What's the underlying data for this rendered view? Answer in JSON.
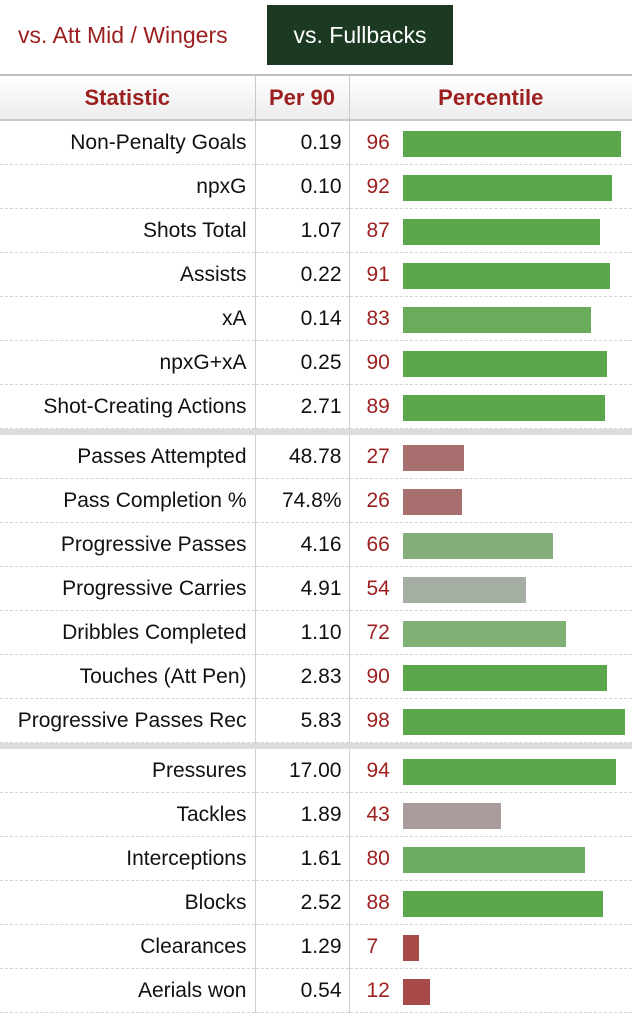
{
  "tabs": [
    {
      "label": "vs. Att Mid / Wingers",
      "active": false
    },
    {
      "label": "vs. Fullbacks",
      "active": true
    }
  ],
  "table": {
    "headers": {
      "statistic": "Statistic",
      "per90": "Per 90",
      "percentile": "Percentile"
    },
    "groups": [
      [
        {
          "statistic": "Non-Penalty Goals",
          "per90": "0.19",
          "percentile": 96,
          "color": "#5aa64a"
        },
        {
          "statistic": "npxG",
          "per90": "0.10",
          "percentile": 92,
          "color": "#5aa64a"
        },
        {
          "statistic": "Shots Total",
          "per90": "1.07",
          "percentile": 87,
          "color": "#5aa64a"
        },
        {
          "statistic": "Assists",
          "per90": "0.22",
          "percentile": 91,
          "color": "#5aa64a"
        },
        {
          "statistic": "xA",
          "per90": "0.14",
          "percentile": 83,
          "color": "#6aac5c"
        },
        {
          "statistic": "npxG+xA",
          "per90": "0.25",
          "percentile": 90,
          "color": "#5aa64a"
        },
        {
          "statistic": "Shot-Creating Actions",
          "per90": "2.71",
          "percentile": 89,
          "color": "#5aa64a"
        }
      ],
      [
        {
          "statistic": "Passes Attempted",
          "per90": "48.78",
          "percentile": 27,
          "color": "#a86f6f"
        },
        {
          "statistic": "Pass Completion %",
          "per90": "74.8%",
          "percentile": 26,
          "color": "#a86f6f"
        },
        {
          "statistic": "Progressive Passes",
          "per90": "4.16",
          "percentile": 66,
          "color": "#84af7a"
        },
        {
          "statistic": "Progressive Carries",
          "per90": "4.91",
          "percentile": 54,
          "color": "#a4aea2"
        },
        {
          "statistic": "Dribbles Completed",
          "per90": "1.10",
          "percentile": 72,
          "color": "#7fb074"
        },
        {
          "statistic": "Touches (Att Pen)",
          "per90": "2.83",
          "percentile": 90,
          "color": "#5aa64a"
        },
        {
          "statistic": "Progressive Passes Rec",
          "per90": "5.83",
          "percentile": 98,
          "color": "#5aa64a"
        }
      ],
      [
        {
          "statistic": "Pressures",
          "per90": "17.00",
          "percentile": 94,
          "color": "#5aa64a"
        },
        {
          "statistic": "Tackles",
          "per90": "1.89",
          "percentile": 43,
          "color": "#aa9c9c"
        },
        {
          "statistic": "Interceptions",
          "per90": "1.61",
          "percentile": 80,
          "color": "#6dac60"
        },
        {
          "statistic": "Blocks",
          "per90": "2.52",
          "percentile": 88,
          "color": "#5aa64a"
        },
        {
          "statistic": "Clearances",
          "per90": "1.29",
          "percentile": 7,
          "color": "#a84a4a"
        },
        {
          "statistic": "Aerials won",
          "per90": "0.54",
          "percentile": 12,
          "color": "#a84a4a"
        }
      ]
    ]
  }
}
